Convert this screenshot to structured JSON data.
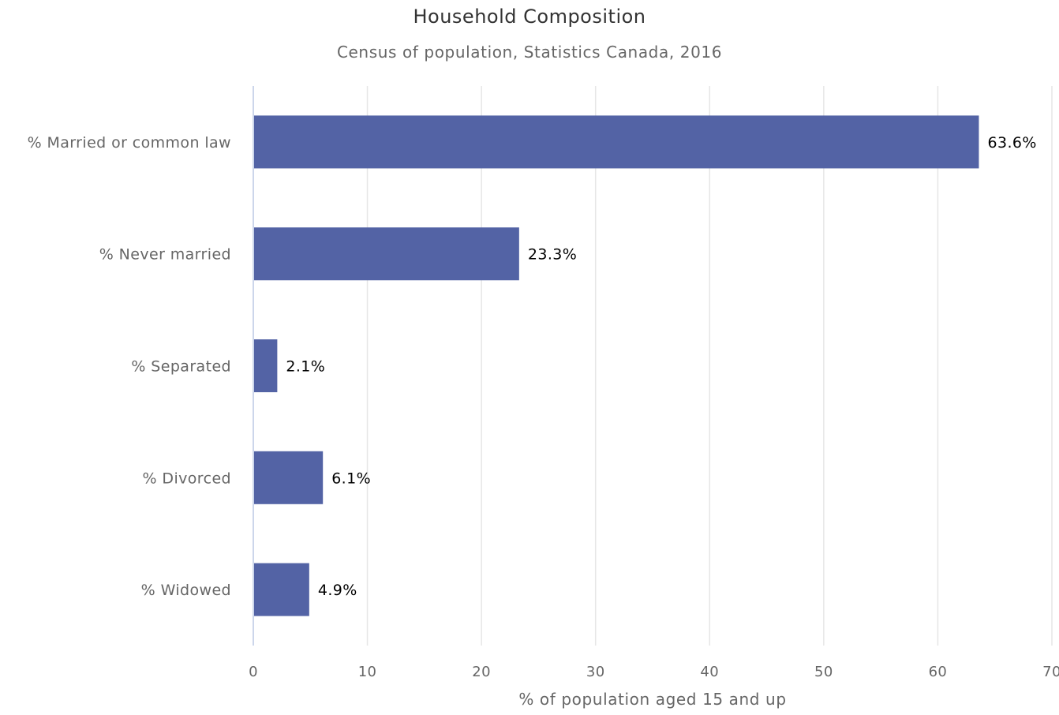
{
  "chart_data": {
    "type": "bar",
    "orientation": "horizontal",
    "title": "Household Composition",
    "subtitle": "Census of population, Statistics Canada, 2016",
    "categories": [
      "% Married or common law",
      "% Never married",
      "% Separated",
      "% Divorced",
      "% Widowed"
    ],
    "values": [
      63.6,
      23.3,
      2.1,
      6.1,
      4.9
    ],
    "data_labels": [
      "63.6%",
      "23.3%",
      "2.1%",
      "6.1%",
      "4.9%"
    ],
    "xlabel": "% of population aged 15 and up",
    "ylabel": "",
    "xlim": [
      0,
      70
    ],
    "ticks": [
      0,
      10,
      20,
      30,
      40,
      50,
      60,
      70
    ],
    "grid": true,
    "legend": "none",
    "bar_color": "#5363a5"
  }
}
